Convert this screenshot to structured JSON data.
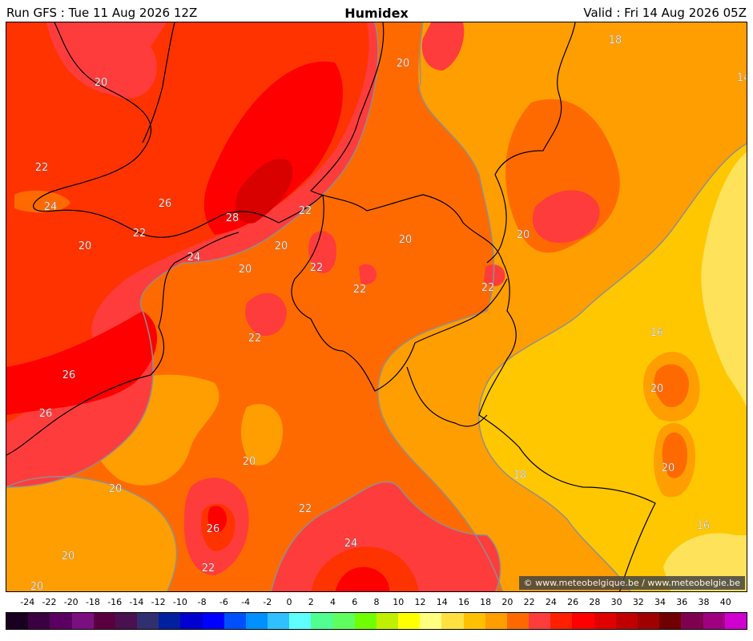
{
  "header": {
    "run": "Run GFS : Tue 11 Aug 2026 12Z",
    "title": "Humidex",
    "valid": "Valid : Fri 14 Aug 2026 05Z"
  },
  "credit": "© www.meteobelgique.be / www.meteobelgie.be",
  "colors": {
    "c14": "#fde25a",
    "c16": "#ffc700",
    "c18": "#ff9e00",
    "c20": "#ff6a00",
    "c22": "#ff3c3c",
    "c24": "#ff3300",
    "c26": "#ff0000",
    "c28": "#d90000",
    "contour": "#8f8f8f",
    "border": "#000000"
  },
  "contour_labels": [
    {
      "text": "18"
    },
    {
      "text": "14"
    },
    {
      "text": "20"
    },
    {
      "text": "20"
    },
    {
      "text": "22"
    },
    {
      "text": "24"
    },
    {
      "text": "26"
    },
    {
      "text": "28"
    },
    {
      "text": "22"
    },
    {
      "text": "20"
    },
    {
      "text": "20"
    },
    {
      "text": "22"
    },
    {
      "text": "20"
    },
    {
      "text": "20"
    },
    {
      "text": "22"
    },
    {
      "text": "20"
    },
    {
      "text": "22"
    },
    {
      "text": "22"
    },
    {
      "text": "24"
    },
    {
      "text": "22"
    },
    {
      "text": "26"
    },
    {
      "text": "26"
    },
    {
      "text": "16"
    },
    {
      "text": "20"
    },
    {
      "text": "20"
    },
    {
      "text": "18"
    },
    {
      "text": "20"
    },
    {
      "text": "20"
    },
    {
      "text": "22"
    },
    {
      "text": "26"
    },
    {
      "text": "22"
    },
    {
      "text": "24"
    },
    {
      "text": "16"
    },
    {
      "text": "20"
    },
    {
      "text": "20"
    },
    {
      "text": "14"
    }
  ],
  "legend": {
    "ticks": [
      "-24",
      "-22",
      "-20",
      "-18",
      "-16",
      "-14",
      "-12",
      "-10",
      "-8",
      "-6",
      "-4",
      "-2",
      "0",
      "2",
      "4",
      "6",
      "8",
      "10",
      "12",
      "14",
      "16",
      "18",
      "20",
      "22",
      "24",
      "26",
      "28",
      "30",
      "32",
      "34",
      "36",
      "38",
      "40"
    ],
    "colors": [
      "#1a0020",
      "#3b0040",
      "#5a0060",
      "#7a1080",
      "#5a0040",
      "#4a1050",
      "#303070",
      "#0020a0",
      "#0000d0",
      "#0000ff",
      "#0050ff",
      "#0090ff",
      "#30c0ff",
      "#60ffff",
      "#50ff90",
      "#60ff60",
      "#70ff00",
      "#c0f000",
      "#ffff00",
      "#ffff80",
      "#ffe040",
      "#ffc000",
      "#ff9e00",
      "#ff6a00",
      "#ff3c3c",
      "#ff2000",
      "#ff0000",
      "#e00000",
      "#c00000",
      "#a00000",
      "#700000",
      "#800050",
      "#a00080",
      "#d000d0"
    ]
  }
}
